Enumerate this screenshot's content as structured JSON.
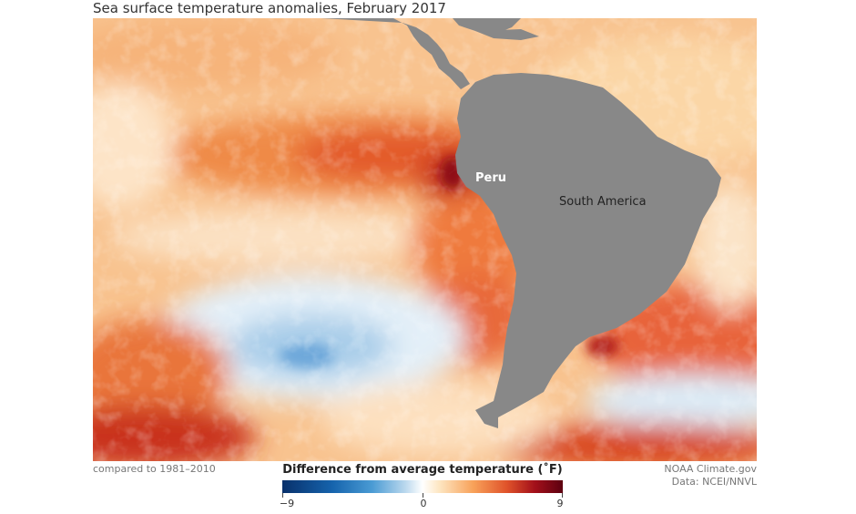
{
  "title": "Sea surface temperature anomalies, February 2017",
  "map": {
    "labels": {
      "peru": "Peru",
      "south_america": "South America"
    },
    "colors": {
      "land": "#888888",
      "warm": "#f2a35e",
      "hot": "#c8281e",
      "cool": "#bcd9ee",
      "cold": "#4a9bd4"
    }
  },
  "footer": {
    "baseline": "compared to 1981–2010",
    "credit_line1": "NOAA Climate.gov",
    "credit_line2": "Data: NCEI/NNVL"
  },
  "legend": {
    "title": "Difference from average temperature (˚F)",
    "min_label": "−9",
    "mid_label": "0",
    "max_label": "9",
    "min": -9,
    "max": 9
  }
}
